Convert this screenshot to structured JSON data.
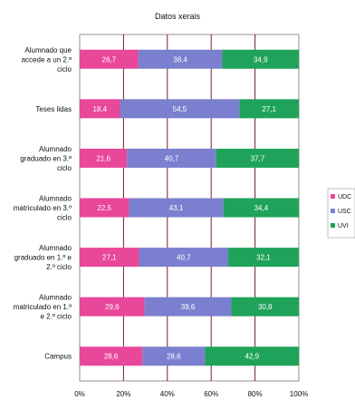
{
  "chart_data": {
    "type": "bar",
    "orientation": "horizontal",
    "stacked": true,
    "title": "Datos xerais",
    "categories": [
      "Alumnado que accede a un 2.º ciclo",
      "Teses lidas",
      "Alumnado graduado en 3.º ciclo",
      "Alumnado matriculado en 3.º ciclo",
      "Alumnado graduado en 1.º e 2.º ciclo",
      "Alumnado matriculado en 1.º e 2.º ciclo",
      "Campus"
    ],
    "category_lines": [
      [
        "Alumnado que",
        "accede a un 2.º",
        "ciclo"
      ],
      [
        "Teses lidas"
      ],
      [
        "Alumnado",
        "graduado en 3.º",
        "ciclo"
      ],
      [
        "Alumnado",
        "matriculado en 3.º",
        "ciclo"
      ],
      [
        "Alumnado",
        "graduado en 1.º e",
        "2.º ciclo"
      ],
      [
        "Alumnado",
        "matriculado en 1.º",
        "e 2.º ciclo"
      ],
      [
        "Campus"
      ]
    ],
    "series": [
      {
        "name": "UDC",
        "color": "#e8479a",
        "values": [
          26.7,
          18.4,
          21.6,
          22.5,
          27.1,
          29.6,
          28.6
        ]
      },
      {
        "name": "USC",
        "color": "#7b7fcf",
        "values": [
          38.4,
          54.5,
          40.7,
          43.1,
          40.7,
          39.6,
          28.6
        ]
      },
      {
        "name": "UVI",
        "color": "#1fa35a",
        "values": [
          34.9,
          27.1,
          37.7,
          34.4,
          32.1,
          30.8,
          42.9
        ]
      }
    ],
    "x_ticks": [
      "0%",
      "20%",
      "40%",
      "60%",
      "80%",
      "100%"
    ],
    "xlim": [
      0,
      100
    ],
    "grid": "vertical",
    "legend": "right"
  }
}
